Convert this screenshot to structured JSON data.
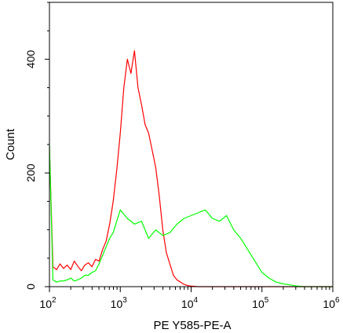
{
  "chart_data": {
    "type": "line",
    "title": "",
    "xlabel": "PE Y585-PE-A",
    "ylabel": "Count",
    "x_scale": "log",
    "xlim": [
      100,
      1000000
    ],
    "ylim": [
      0,
      500
    ],
    "y_ticks": [
      0,
      200,
      400
    ],
    "x_tick_labels": [
      {
        "base": "10",
        "exp": "2"
      },
      {
        "base": "10",
        "exp": "3"
      },
      {
        "base": "10",
        "exp": "4"
      },
      {
        "base": "10",
        "exp": "5"
      },
      {
        "base": "10",
        "exp": "6"
      }
    ],
    "grid": false,
    "series": [
      {
        "color": "#ff0000",
        "x": [
          100,
          112,
          126,
          141,
          158,
          178,
          200,
          224,
          251,
          282,
          316,
          355,
          398,
          447,
          501,
          562,
          631,
          708,
          794,
          891,
          1000,
          1122,
          1259,
          1413,
          1585,
          1778,
          1995,
          2239,
          2512,
          2818,
          3162,
          3548,
          3981,
          4467,
          5012,
          5623,
          6310,
          7079,
          7943,
          8913,
          10000,
          12589,
          15849,
          19953,
          31623,
          100000,
          1000000
        ],
        "y": [
          245,
          35,
          30,
          40,
          32,
          38,
          30,
          45,
          36,
          28,
          38,
          42,
          35,
          48,
          45,
          65,
          80,
          110,
          150,
          205,
          270,
          350,
          400,
          375,
          415,
          350,
          320,
          285,
          270,
          240,
          210,
          160,
          100,
          60,
          40,
          20,
          12,
          8,
          4,
          2,
          1,
          0,
          0,
          0,
          0,
          0,
          0
        ]
      },
      {
        "color": "#00ff00",
        "x": [
          100,
          112,
          126,
          141,
          158,
          178,
          200,
          224,
          251,
          282,
          316,
          355,
          398,
          447,
          501,
          562,
          631,
          708,
          794,
          891,
          1000,
          1259,
          1585,
          1995,
          2512,
          3162,
          3981,
          5012,
          6310,
          7943,
          10000,
          12589,
          15849,
          19953,
          25119,
          31623,
          39811,
          50119,
          63096,
          79433,
          100000,
          125893,
          158489,
          199526,
          251189,
          316228,
          398107,
          501187,
          1000000
        ],
        "y": [
          250,
          12,
          8,
          10,
          10,
          12,
          15,
          10,
          12,
          15,
          20,
          20,
          25,
          28,
          40,
          55,
          70,
          85,
          95,
          115,
          135,
          120,
          110,
          115,
          85,
          100,
          90,
          95,
          110,
          120,
          125,
          130,
          135,
          120,
          115,
          125,
          100,
          85,
          65,
          45,
          25,
          15,
          8,
          5,
          3,
          1,
          0,
          0,
          0
        ]
      }
    ]
  }
}
